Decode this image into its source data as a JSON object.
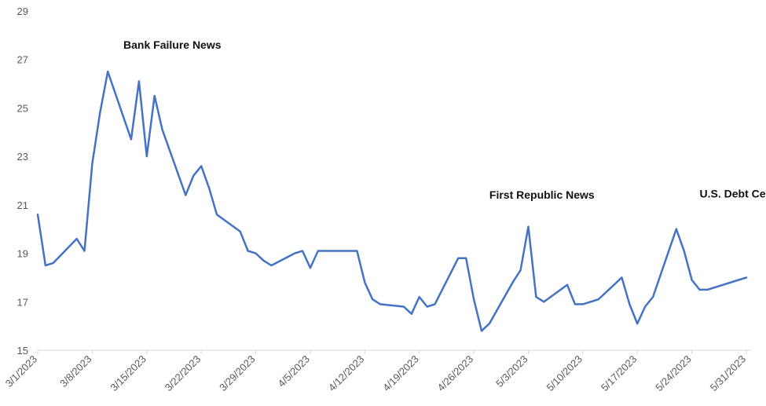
{
  "chart_data": {
    "type": "line",
    "title": "",
    "xlabel": "",
    "ylabel": "",
    "ylim": [
      15,
      29
    ],
    "yticks": [
      15,
      17,
      19,
      21,
      23,
      25,
      27,
      29
    ],
    "grid": false,
    "x_range": [
      "3/1/2023",
      "5/31/2023"
    ],
    "x_tick_labels": [
      "3/1/2023",
      "3/8/2023",
      "3/15/2023",
      "3/22/2023",
      "3/29/2023",
      "4/5/2023",
      "4/12/2023",
      "4/19/2023",
      "4/26/2023",
      "5/3/2023",
      "5/10/2023",
      "5/17/2023",
      "5/24/2023",
      "5/31/2023"
    ],
    "line_color": "#4472C4",
    "series": [
      {
        "x": [
          "3/1/2023",
          "3/2/2023",
          "3/3/2023",
          "3/6/2023",
          "3/7/2023",
          "3/8/2023",
          "3/9/2023",
          "3/10/2023",
          "3/13/2023",
          "3/14/2023",
          "3/15/2023",
          "3/16/2023",
          "3/17/2023",
          "3/20/2023",
          "3/21/2023",
          "3/22/2023",
          "3/23/2023",
          "3/24/2023",
          "3/27/2023",
          "3/28/2023",
          "3/29/2023",
          "3/30/2023",
          "3/31/2023",
          "4/3/2023",
          "4/4/2023",
          "4/5/2023",
          "4/6/2023",
          "4/11/2023",
          "4/12/2023",
          "4/13/2023",
          "4/14/2023",
          "4/17/2023",
          "4/18/2023",
          "4/19/2023",
          "4/20/2023",
          "4/21/2023",
          "4/24/2023",
          "4/25/2023",
          "4/26/2023",
          "4/27/2023",
          "4/28/2023",
          "5/1/2023",
          "5/2/2023",
          "5/3/2023",
          "5/4/2023",
          "5/5/2023",
          "5/8/2023",
          "5/9/2023",
          "5/10/2023",
          "5/11/2023",
          "5/12/2023",
          "5/15/2023",
          "5/16/2023",
          "5/17/2023",
          "5/18/2023",
          "5/19/2023",
          "5/22/2023",
          "5/23/2023",
          "5/24/2023",
          "5/25/2023",
          "5/26/2023",
          "5/30/2023",
          "5/31/2023"
        ],
        "values": [
          20.6,
          18.5,
          18.6,
          19.6,
          19.1,
          22.7,
          24.8,
          26.5,
          23.7,
          26.1,
          23.0,
          25.5,
          24.1,
          21.4,
          22.2,
          22.6,
          21.7,
          20.6,
          19.9,
          19.1,
          19.0,
          18.7,
          18.5,
          19.0,
          19.1,
          18.4,
          19.1,
          19.1,
          17.8,
          17.1,
          16.9,
          16.8,
          16.5,
          17.2,
          16.8,
          16.9,
          18.8,
          18.8,
          17.1,
          15.8,
          16.1,
          17.8,
          18.3,
          20.1,
          17.2,
          17.0,
          17.7,
          16.9,
          16.9,
          17.0,
          17.1,
          18.0,
          16.9,
          16.1,
          16.8,
          17.2,
          20.0,
          19.1,
          17.9,
          17.5,
          17.5,
          17.9,
          18.0
        ]
      }
    ],
    "annotations": [
      {
        "text": "Bank Failure News",
        "x": "3/12/2023",
        "y": 27.45
      },
      {
        "text": "First Republic News",
        "x": "4/28/2023",
        "y": 21.25
      },
      {
        "text": "U.S. Debt Ceiling",
        "x": "5/25/2023",
        "y": 21.3
      }
    ]
  }
}
